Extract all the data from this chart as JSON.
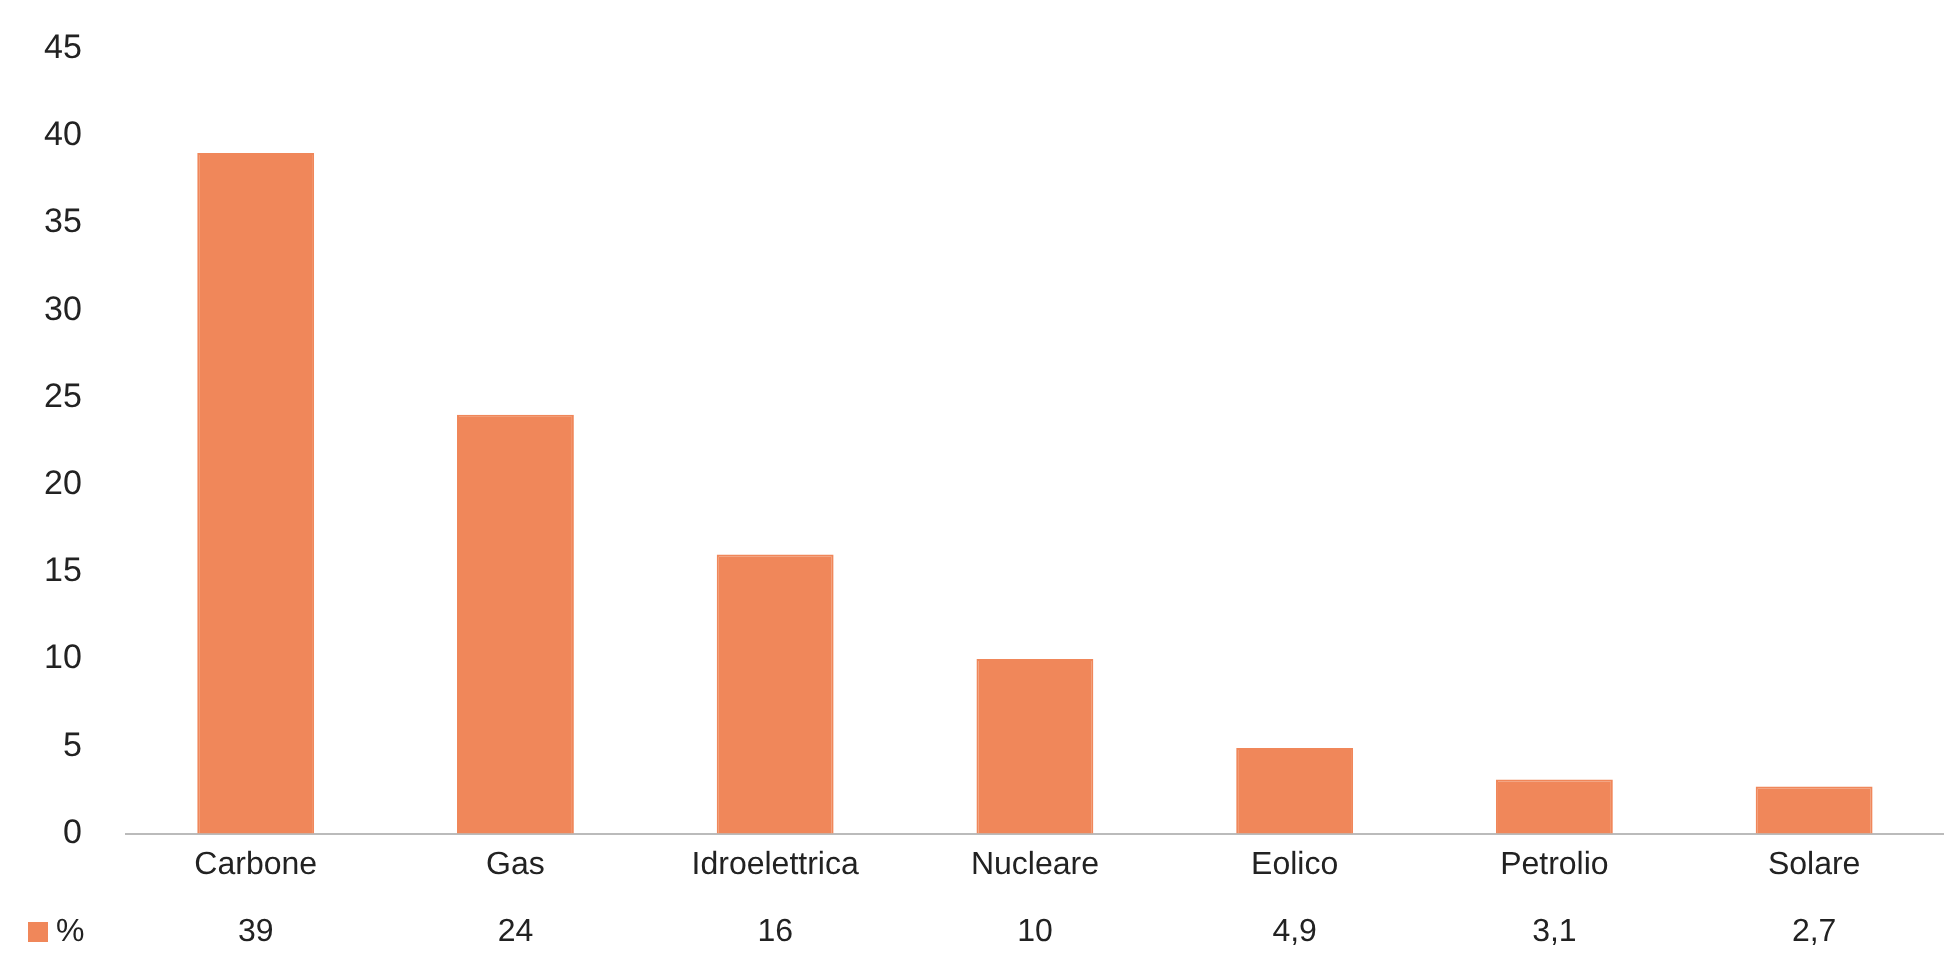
{
  "chart_data": {
    "type": "bar",
    "categories": [
      "Carbone",
      "Gas",
      "Idroelettrica",
      "Nucleare",
      "Eolico",
      "Petrolio",
      "Solare"
    ],
    "series": [
      {
        "name": "%",
        "color": "#f0875a",
        "values": [
          39,
          24,
          16,
          10,
          4.9,
          3.1,
          2.7
        ],
        "value_labels": [
          "39",
          "24",
          "16",
          "10",
          "4,9",
          "3,1",
          "2,7"
        ]
      }
    ],
    "ylim": [
      0,
      45
    ],
    "yticks": [
      0,
      5,
      10,
      15,
      20,
      25,
      30,
      35,
      40,
      45
    ],
    "legend": "bottom left"
  }
}
